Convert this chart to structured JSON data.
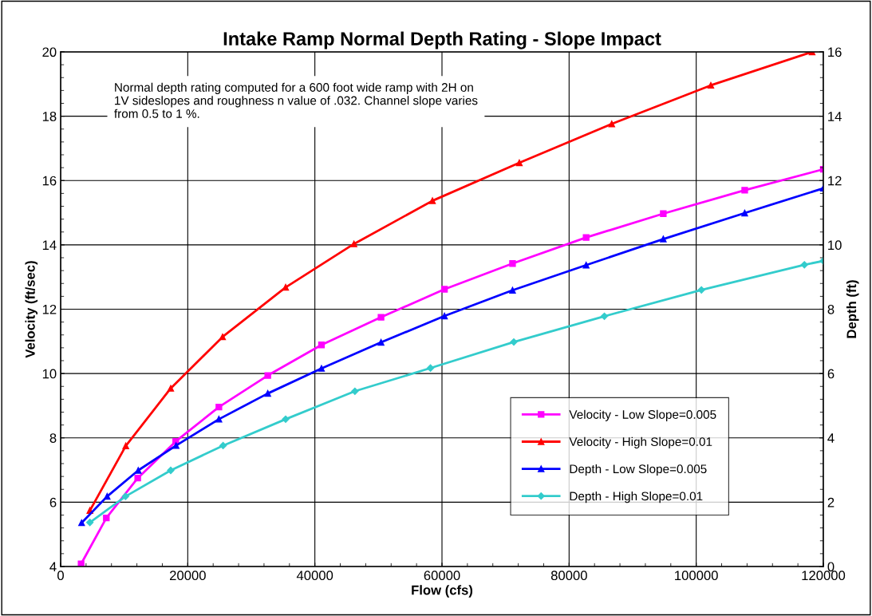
{
  "chart_data": {
    "type": "line",
    "title": "Intake Ramp Normal Depth Rating - Slope Impact",
    "xlabel": "Flow (cfs)",
    "ylabel": "Velocity (ft/sec)",
    "y2label": "Depth (ft)",
    "xlim": [
      0,
      120000
    ],
    "xticks": [
      0,
      20000,
      40000,
      60000,
      80000,
      100000,
      120000
    ],
    "ylim": [
      4,
      20
    ],
    "yticks": [
      4,
      6,
      8,
      10,
      12,
      14,
      16,
      18,
      20
    ],
    "y2lim": [
      0,
      16
    ],
    "y2ticks": [
      0,
      2,
      4,
      6,
      8,
      10,
      12,
      14,
      16
    ],
    "grid": true,
    "legend": "bottom right",
    "annotations": [
      "Normal depth rating computed for a 600 foot wide ramp with 2H on 1V sideslopes and roughness n value of .032. Channel slope varies from 0.5 to 1 %."
    ],
    "series": [
      {
        "name": "Velocity - Low Slope=0.005",
        "color": "#ff00ff",
        "marker": "square",
        "x": [
          3220,
          7190,
          12130,
          18110,
          24900,
          32590,
          41040,
          50410,
          60390,
          71100,
          82680,
          94820,
          107630,
          120000
        ],
        "values": [
          4.08,
          5.51,
          6.75,
          7.89,
          8.96,
          9.94,
          10.89,
          11.75,
          12.62,
          13.42,
          14.23,
          14.97,
          15.7,
          16.35
        ]
      },
      {
        "name": "Velocity - High Slope=0.01",
        "color": "#ff0000",
        "marker": "triangle",
        "x": [
          4600,
          10250,
          17320,
          25480,
          35400,
          46150,
          58500,
          72170,
          86710,
          102300,
          118230
        ],
        "values": [
          5.74,
          7.75,
          9.54,
          11.14,
          12.68,
          14.03,
          15.37,
          16.55,
          17.76,
          18.96,
          20.0
        ]
      },
      {
        "name": "Depth - Low Slope=0.005",
        "color": "#0000ff",
        "marker": "triangle",
        "axis": "y2",
        "x": [
          3300,
          7320,
          12210,
          18160,
          24900,
          32590,
          41040,
          50410,
          60390,
          71100,
          82680,
          94820,
          107630,
          120000
        ],
        "values": [
          1.36,
          2.18,
          2.99,
          3.76,
          4.58,
          5.38,
          6.16,
          6.97,
          7.79,
          8.59,
          9.37,
          10.18,
          10.99,
          11.76
        ]
      },
      {
        "name": "Depth - High Slope=0.01",
        "color": "#33cccc",
        "marker": "diamond",
        "axis": "y2",
        "x": [
          4600,
          10210,
          17320,
          25560,
          35400,
          46300,
          58190,
          71300,
          85550,
          100820,
          117020,
          120000
        ],
        "values": [
          1.37,
          2.18,
          2.99,
          3.76,
          4.58,
          5.45,
          6.17,
          6.98,
          7.78,
          8.6,
          9.38,
          9.5
        ]
      }
    ]
  }
}
